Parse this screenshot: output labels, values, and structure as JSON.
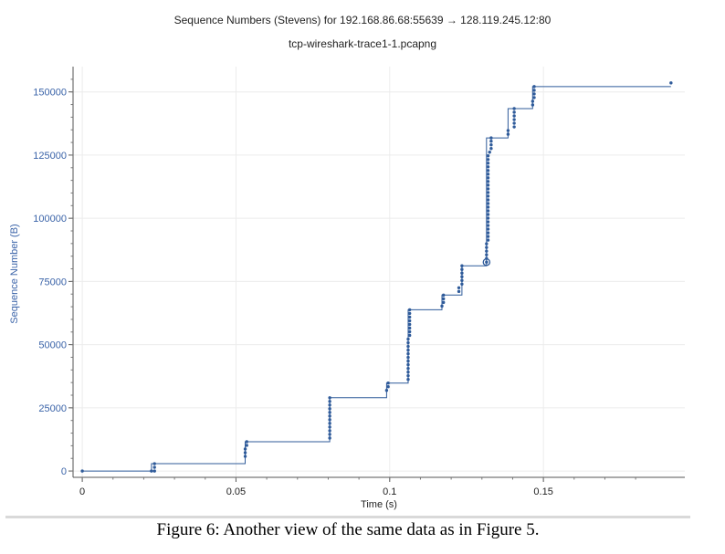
{
  "chart_data": {
    "type": "scatter",
    "title": "Sequence Numbers (Stevens) for 192.168.86.68:55639 → 128.119.245.12:80",
    "subtitle": "tcp-wireshark-trace1-1.pcapng",
    "xlabel": "Time (s)",
    "ylabel": "Sequence Number (B)",
    "xlim": [
      -0.003,
      0.196
    ],
    "ylim": [
      -2500,
      160000
    ],
    "x_ticks": [
      0,
      0.05,
      0.1,
      0.15
    ],
    "x_tick_labels": [
      "0",
      "0.05",
      "0.1",
      "0.15"
    ],
    "y_ticks": [
      0,
      25000,
      50000,
      75000,
      100000,
      125000,
      150000
    ],
    "y_tick_labels": [
      "0",
      "25000",
      "50000",
      "75000",
      "100000",
      "125000",
      "150000"
    ],
    "grid": true,
    "legend": "none",
    "series": [
      {
        "step_line": [
          [
            0,
            0
          ],
          [
            0.0225,
            0
          ],
          [
            0.0225,
            2900
          ],
          [
            0.053,
            2900
          ],
          [
            0.053,
            11600
          ],
          [
            0.0805,
            11600
          ],
          [
            0.0805,
            29000
          ],
          [
            0.099,
            29000
          ],
          [
            0.099,
            34800
          ],
          [
            0.106,
            34800
          ],
          [
            0.106,
            63800
          ],
          [
            0.117,
            63800
          ],
          [
            0.117,
            69600
          ],
          [
            0.1235,
            69600
          ],
          [
            0.1235,
            81200
          ],
          [
            0.1315,
            81200
          ],
          [
            0.1315,
            131800
          ],
          [
            0.1385,
            131800
          ],
          [
            0.1385,
            143400
          ],
          [
            0.1465,
            143400
          ],
          [
            0.1465,
            152100
          ],
          [
            0.1915,
            152100
          ]
        ],
        "points": [
          [
            0,
            0
          ],
          [
            0.0225,
            0
          ],
          [
            0.0235,
            0
          ],
          [
            0.0235,
            1450
          ],
          [
            0.0235,
            2900
          ],
          [
            0.053,
            5800
          ],
          [
            0.053,
            7250
          ],
          [
            0.053,
            8700
          ],
          [
            0.0535,
            10150
          ],
          [
            0.0535,
            11600
          ],
          [
            0.0805,
            13050
          ],
          [
            0.0805,
            14500
          ],
          [
            0.0805,
            15950
          ],
          [
            0.0805,
            17400
          ],
          [
            0.0805,
            18850
          ],
          [
            0.0805,
            20300
          ],
          [
            0.0805,
            21750
          ],
          [
            0.0805,
            23200
          ],
          [
            0.0805,
            24650
          ],
          [
            0.0805,
            26100
          ],
          [
            0.0805,
            27550
          ],
          [
            0.0805,
            29000
          ],
          [
            0.099,
            31900
          ],
          [
            0.0995,
            33350
          ],
          [
            0.0995,
            34800
          ],
          [
            0.106,
            36250
          ],
          [
            0.106,
            37700
          ],
          [
            0.106,
            39150
          ],
          [
            0.106,
            40600
          ],
          [
            0.106,
            42050
          ],
          [
            0.106,
            43500
          ],
          [
            0.106,
            44950
          ],
          [
            0.106,
            46400
          ],
          [
            0.106,
            47850
          ],
          [
            0.106,
            49300
          ],
          [
            0.106,
            50750
          ],
          [
            0.106,
            52200
          ],
          [
            0.1065,
            53650
          ],
          [
            0.1065,
            55100
          ],
          [
            0.1065,
            56550
          ],
          [
            0.1065,
            58000
          ],
          [
            0.1065,
            59450
          ],
          [
            0.1065,
            60900
          ],
          [
            0.1065,
            62350
          ],
          [
            0.1065,
            63800
          ],
          [
            0.117,
            65250
          ],
          [
            0.1175,
            66700
          ],
          [
            0.1175,
            68150
          ],
          [
            0.1175,
            69600
          ],
          [
            0.1225,
            71050
          ],
          [
            0.1225,
            72500
          ],
          [
            0.1235,
            73950
          ],
          [
            0.1235,
            75400
          ],
          [
            0.1235,
            76850
          ],
          [
            0.1235,
            78300
          ],
          [
            0.1235,
            79750
          ],
          [
            0.1235,
            81200
          ],
          [
            0.1315,
            84100
          ],
          [
            0.1315,
            85550
          ],
          [
            0.1315,
            87000
          ],
          [
            0.1315,
            88450
          ],
          [
            0.1315,
            89900
          ],
          [
            0.132,
            91350
          ],
          [
            0.132,
            92800
          ],
          [
            0.132,
            94250
          ],
          [
            0.132,
            95700
          ],
          [
            0.132,
            97150
          ],
          [
            0.132,
            98600
          ],
          [
            0.132,
            100050
          ],
          [
            0.132,
            101500
          ],
          [
            0.132,
            102950
          ],
          [
            0.132,
            104400
          ],
          [
            0.132,
            105850
          ],
          [
            0.132,
            107300
          ],
          [
            0.132,
            108750
          ],
          [
            0.132,
            110200
          ],
          [
            0.132,
            111650
          ],
          [
            0.132,
            113100
          ],
          [
            0.132,
            114550
          ],
          [
            0.132,
            116000
          ],
          [
            0.132,
            117450
          ],
          [
            0.132,
            118900
          ],
          [
            0.132,
            120350
          ],
          [
            0.132,
            121800
          ],
          [
            0.132,
            123250
          ],
          [
            0.132,
            124700
          ],
          [
            0.1325,
            126150
          ],
          [
            0.133,
            127600
          ],
          [
            0.133,
            129050
          ],
          [
            0.133,
            130500
          ],
          [
            0.133,
            131800
          ],
          [
            0.1385,
            133250
          ],
          [
            0.1385,
            134700
          ],
          [
            0.1405,
            136150
          ],
          [
            0.1405,
            137600
          ],
          [
            0.1405,
            139050
          ],
          [
            0.1405,
            140500
          ],
          [
            0.1405,
            141950
          ],
          [
            0.1405,
            143400
          ],
          [
            0.1465,
            144850
          ],
          [
            0.1465,
            146300
          ],
          [
            0.147,
            147750
          ],
          [
            0.147,
            149200
          ],
          [
            0.147,
            150650
          ],
          [
            0.147,
            152100
          ],
          [
            0.1915,
            153550
          ]
        ],
        "highlight_point": [
          0.1315,
          82650
        ]
      }
    ],
    "color": "#2f5b9a"
  },
  "caption": "Figure 6:  Another view of the same data as in Figure 5."
}
